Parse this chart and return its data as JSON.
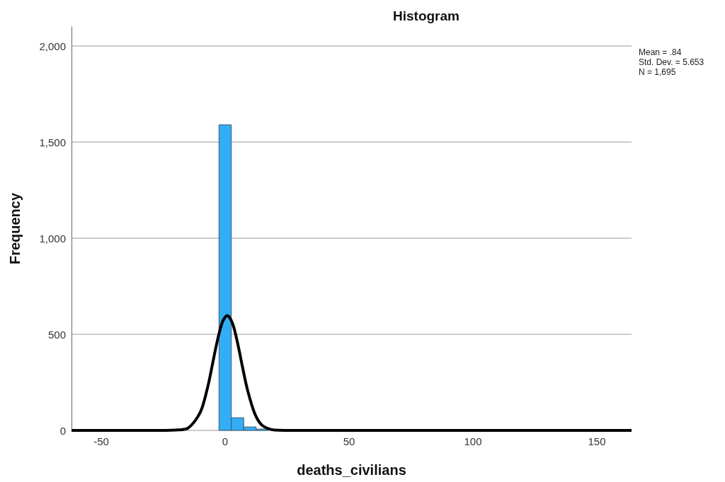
{
  "chart_data": {
    "type": "histogram",
    "title": "Histogram",
    "xlabel": "deaths_civilians",
    "ylabel": "Frequency",
    "annotations": [
      "Mean = .84",
      "Std. Dev. = 5.653",
      "N = 1,695"
    ],
    "series": [
      {
        "bins": [
          -2.5,
          2.5,
          7.5,
          12.5,
          17.5
        ],
        "values": [
          1590,
          66,
          18,
          7
        ],
        "color": "#33adf5"
      },
      {
        "type": "line",
        "x": [
          -62,
          -30,
          -20,
          -15,
          -10,
          -7,
          -5,
          -3,
          -1,
          0.84,
          3,
          5,
          7,
          9,
          12,
          15,
          20,
          30,
          60,
          100,
          164
        ],
        "values": [
          0,
          0,
          2,
          12,
          95,
          228,
          352,
          475,
          567,
          598,
          556,
          456,
          330,
          212,
          86,
          26,
          2,
          0,
          0,
          0,
          0
        ],
        "color": "#000000"
      }
    ],
    "xlim": [
      -62,
      164
    ],
    "xticks": [
      -50,
      0,
      50,
      100,
      150
    ],
    "ylim": [
      0,
      2100
    ],
    "yticks": [
      0,
      500,
      {
        "value": 1000,
        "label": "1,000"
      },
      {
        "value": 1500,
        "label": "1,500"
      },
      {
        "value": 2000,
        "label": "2,000"
      }
    ],
    "grid": "y",
    "marker": "none",
    "line_style": "solid"
  }
}
